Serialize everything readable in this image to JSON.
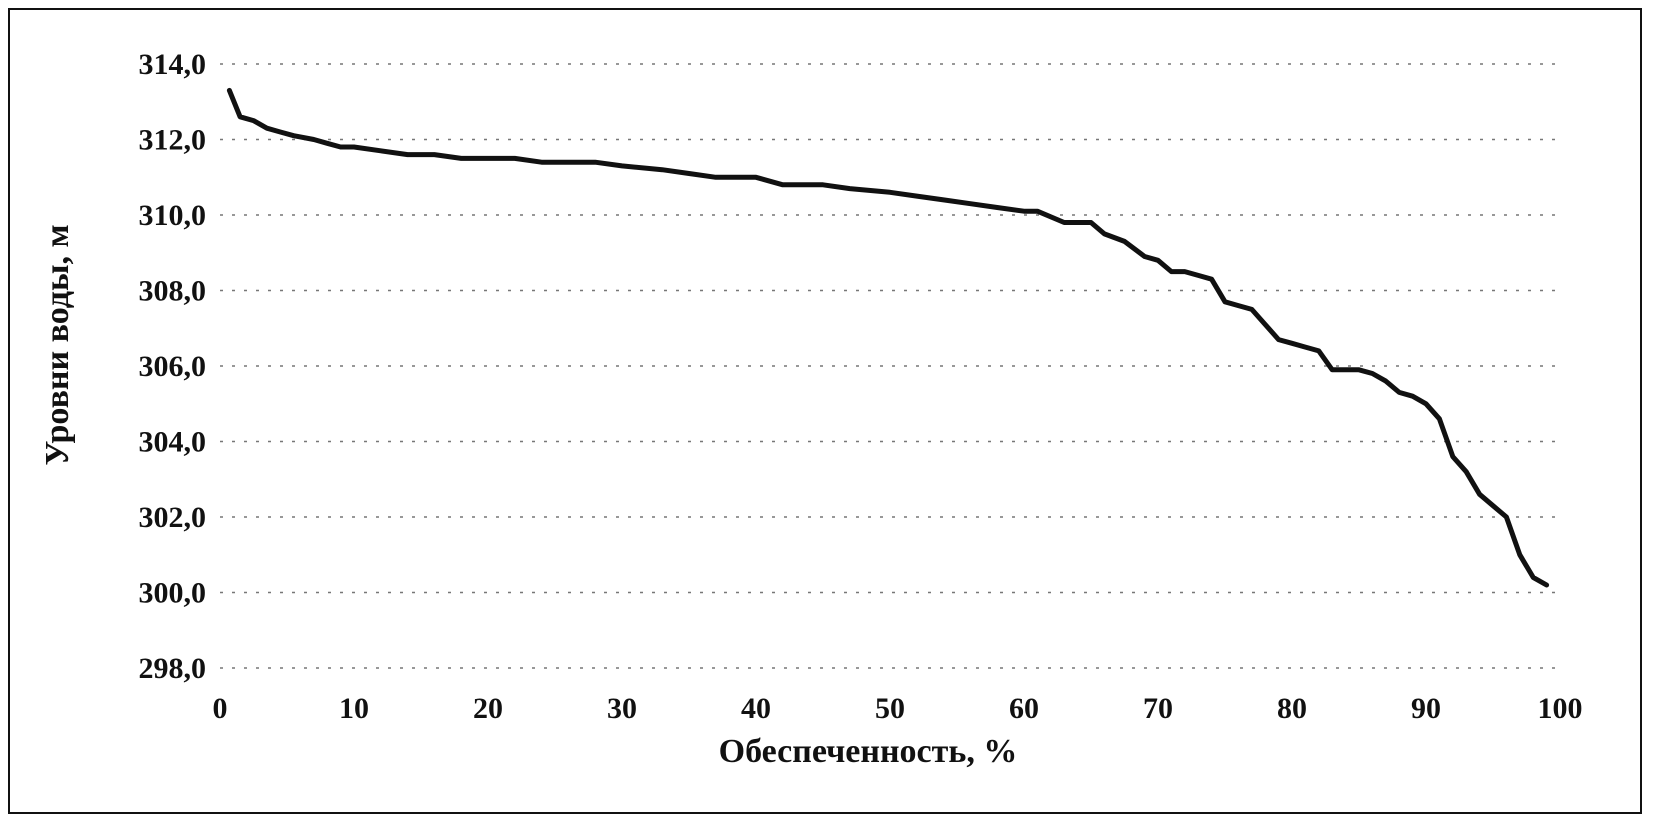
{
  "chart_data": {
    "type": "line",
    "title": "",
    "xlabel": "Обеспеченность, %",
    "ylabel": "Уровни воды, м",
    "xlim": [
      0,
      100
    ],
    "ylim": [
      298,
      314
    ],
    "x_ticks": [
      "0",
      "10",
      "20",
      "30",
      "40",
      "50",
      "60",
      "70",
      "80",
      "90",
      "100"
    ],
    "y_ticks": [
      "298,0",
      "300,0",
      "302,0",
      "304,0",
      "306,0",
      "308,0",
      "310,0",
      "312,0",
      "314,0"
    ],
    "grid": "horizontal dotted",
    "legend": "none",
    "line_color": "#111111",
    "series": [
      {
        "x": [
          0.7,
          1.5,
          2.5,
          3.5,
          4.5,
          5.5,
          7,
          8,
          9,
          10,
          12,
          14,
          16,
          18,
          20,
          22,
          24,
          26,
          28,
          30,
          33,
          35,
          37,
          40,
          42,
          45,
          47,
          50,
          52,
          54,
          56,
          58,
          60,
          61,
          63,
          65,
          66,
          67.5,
          69,
          70,
          71,
          72,
          73,
          74,
          75,
          76,
          77,
          78,
          79,
          80,
          81,
          82,
          83,
          84,
          85,
          86,
          87,
          88,
          89,
          90,
          91,
          92,
          93,
          94,
          95,
          96,
          97,
          98,
          99
        ],
        "y": [
          313.3,
          312.6,
          312.5,
          312.3,
          312.2,
          312.1,
          312.0,
          311.9,
          311.8,
          311.8,
          311.7,
          311.6,
          311.6,
          311.5,
          311.5,
          311.5,
          311.4,
          311.4,
          311.4,
          311.3,
          311.2,
          311.1,
          311.0,
          311.0,
          310.8,
          310.8,
          310.7,
          310.6,
          310.5,
          310.4,
          310.3,
          310.2,
          310.1,
          310.1,
          309.8,
          309.8,
          309.5,
          309.3,
          308.9,
          308.8,
          308.5,
          308.5,
          308.4,
          308.3,
          307.7,
          307.6,
          307.5,
          307.1,
          306.7,
          306.6,
          306.5,
          306.4,
          305.9,
          305.9,
          305.9,
          305.8,
          305.6,
          305.3,
          305.2,
          305.0,
          304.6,
          303.6,
          303.2,
          302.6,
          302.3,
          302.0,
          301.0,
          300.4,
          300.2
        ]
      }
    ]
  }
}
